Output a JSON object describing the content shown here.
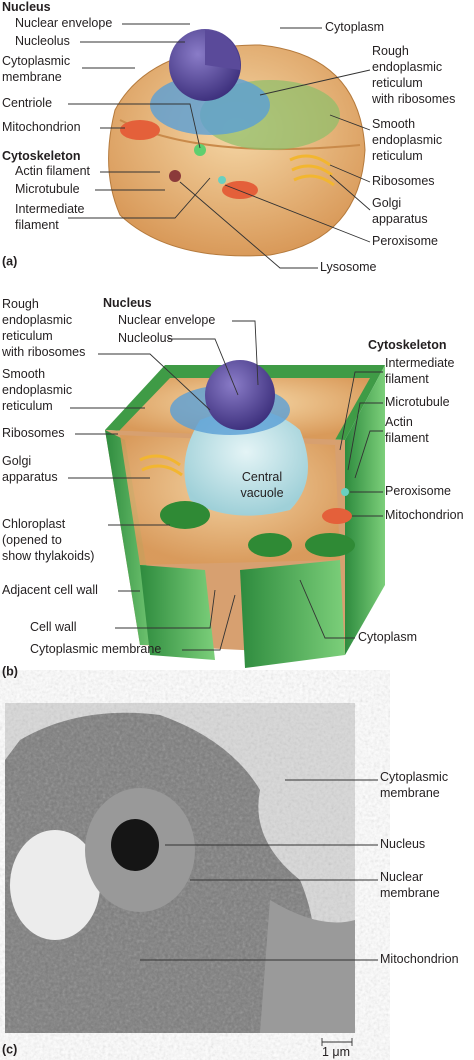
{
  "panels": [
    {
      "tag": "(a)",
      "labels": [
        {
          "lines": [
            "Nucleus"
          ],
          "bold": true
        },
        {
          "lines": [
            "Nuclear envelope"
          ]
        },
        {
          "lines": [
            "Nucleolus"
          ]
        },
        {
          "lines": [
            "Cytoplasmic",
            "membrane"
          ]
        },
        {
          "lines": [
            "Centriole"
          ]
        },
        {
          "lines": [
            "Mitochondrion"
          ]
        },
        {
          "lines": [
            "Cytoskeleton"
          ],
          "bold": true
        },
        {
          "lines": [
            "Actin filament"
          ]
        },
        {
          "lines": [
            "Microtubule"
          ]
        },
        {
          "lines": [
            "Intermediate",
            "filament"
          ]
        },
        {
          "lines": [
            "Cytoplasm"
          ]
        },
        {
          "lines": [
            "Rough",
            "endoplasmic",
            "reticulum",
            "with ribosomes"
          ]
        },
        {
          "lines": [
            "Smooth",
            "endoplasmic",
            "reticulum"
          ]
        },
        {
          "lines": [
            "Ribosomes"
          ]
        },
        {
          "lines": [
            "Golgi",
            "apparatus"
          ]
        },
        {
          "lines": [
            "Peroxisome"
          ]
        },
        {
          "lines": [
            "Lysosome"
          ]
        }
      ]
    },
    {
      "tag": "(b)",
      "labels": [
        {
          "lines": [
            "Rough",
            "endoplasmic",
            "reticulum",
            "with ribosomes"
          ]
        },
        {
          "lines": [
            "Nucleus"
          ],
          "bold": true
        },
        {
          "lines": [
            "Nuclear envelope"
          ]
        },
        {
          "lines": [
            "Nucleolus"
          ]
        },
        {
          "lines": [
            "Smooth",
            "endoplasmic",
            "reticulum"
          ]
        },
        {
          "lines": [
            "Ribosomes"
          ]
        },
        {
          "lines": [
            "Golgi",
            "apparatus"
          ]
        },
        {
          "lines": [
            "Chloroplast",
            "(opened to",
            "show thylakoids)"
          ]
        },
        {
          "lines": [
            "Adjacent cell wall"
          ]
        },
        {
          "lines": [
            "Cell wall"
          ]
        },
        {
          "lines": [
            "Cytoplasmic membrane"
          ]
        },
        {
          "lines": [
            "Cytoskeleton"
          ],
          "bold": true
        },
        {
          "lines": [
            "Intermediate",
            "filament"
          ]
        },
        {
          "lines": [
            "Microtubule"
          ]
        },
        {
          "lines": [
            "Actin",
            "filament"
          ]
        },
        {
          "lines": [
            "Peroxisome"
          ]
        },
        {
          "lines": [
            "Mitochondrion"
          ]
        },
        {
          "lines": [
            "Cytoplasm"
          ]
        },
        {
          "lines": [
            "Central",
            "vacuole"
          ]
        }
      ]
    },
    {
      "tag": "(c)",
      "labels": [
        {
          "lines": [
            "Cytoplasmic",
            "membrane"
          ]
        },
        {
          "lines": [
            "Nucleus"
          ]
        },
        {
          "lines": [
            "Nuclear",
            "membrane"
          ]
        },
        {
          "lines": [
            "Mitochondrion"
          ]
        },
        {
          "lines": [
            "1 μm"
          ]
        }
      ]
    }
  ]
}
